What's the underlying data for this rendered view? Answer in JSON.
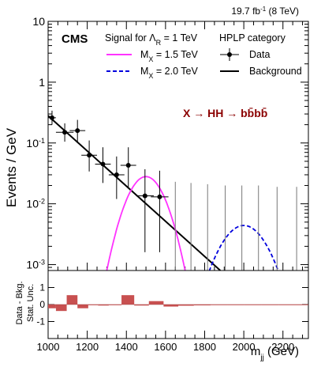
{
  "chart_data": {
    "type": "scatter",
    "lumi_label": "19.7 fb",
    "lumi_sup": "-1",
    "lumi_suffix": " (8 TeV)",
    "experiment_label": "CMS",
    "category_label": "HPLP category",
    "signal_header": "Signal for Λ",
    "signal_header_sub": "R",
    "signal_header_suffix": " = 1 TeV",
    "process_label": "X → HH → bb̄bb̄",
    "xlabel": "m",
    "xlabel_sub": "jj",
    "xlabel_suffix": " (GeV)",
    "ylabel": "Events / GeV",
    "ratio_ylabel_top": "Data - Bkg.",
    "ratio_ylabel_bottom": "Stat. Unc.",
    "xlim": [
      1000,
      2330
    ],
    "ylim_log": [
      0.0008,
      10
    ],
    "ratio_ylim": [
      -2,
      2
    ],
    "xticks": [
      1000,
      1200,
      1400,
      1600,
      1800,
      2000,
      2200
    ],
    "yticks_top": [
      {
        "value": 10,
        "label": "10"
      },
      {
        "value": 1,
        "label": "1"
      },
      {
        "value": 0.1,
        "label": "10",
        "sup": "-1"
      },
      {
        "value": 0.01,
        "label": "10",
        "sup": "-2"
      },
      {
        "value": 0.001,
        "label": "10",
        "sup": "-3"
      }
    ],
    "ratio_yticks": [
      -1,
      0,
      1
    ],
    "legend": [
      {
        "label": "M",
        "sub": "X",
        "suffix": " = 1.5 TeV",
        "color": "#ff33ff",
        "style": "solid"
      },
      {
        "label": "M",
        "sub": "X",
        "suffix": " = 2.0 TeV",
        "color": "#0000dd",
        "style": "dashed"
      },
      {
        "label": "Data",
        "style": "marker"
      },
      {
        "label": "Background",
        "style": "line",
        "color": "#000000"
      }
    ],
    "data_points": [
      {
        "x": 1020,
        "y": 0.26,
        "xerr": 20,
        "ylo": 0.2,
        "yhi": 0.34
      },
      {
        "x": 1085,
        "y": 0.15,
        "xerr": 45,
        "ylo": 0.105,
        "yhi": 0.21
      },
      {
        "x": 1150,
        "y": 0.16,
        "xerr": 40,
        "ylo": 0.1,
        "yhi": 0.24
      },
      {
        "x": 1210,
        "y": 0.063,
        "xerr": 40,
        "ylo": 0.034,
        "yhi": 0.11
      },
      {
        "x": 1280,
        "y": 0.045,
        "xerr": 40,
        "ylo": 0.022,
        "yhi": 0.085
      },
      {
        "x": 1350,
        "y": 0.03,
        "xerr": 40,
        "ylo": 0.012,
        "yhi": 0.06
      },
      {
        "x": 1410,
        "y": 0.043,
        "xerr": 40,
        "ylo": 0.018,
        "yhi": 0.085
      },
      {
        "x": 1495,
        "y": 0.0135,
        "xerr": 45,
        "ylo": 0.0016,
        "yhi": 0.037
      },
      {
        "x": 1570,
        "y": 0.013,
        "xerr": 45,
        "ylo": 0.0016,
        "yhi": 0.035
      }
    ],
    "empty_bin_errors": [
      {
        "x": 1650,
        "yhi": 0.023
      },
      {
        "x": 1730,
        "yhi": 0.022
      },
      {
        "x": 1815,
        "yhi": 0.021
      },
      {
        "x": 1905,
        "yhi": 0.02
      },
      {
        "x": 1990,
        "yhi": 0.02
      },
      {
        "x": 2075,
        "yhi": 0.02
      },
      {
        "x": 2170,
        "yhi": 0.019
      },
      {
        "x": 2270,
        "yhi": 0.019
      }
    ],
    "background_fit": {
      "x": [
        1000,
        1880
      ],
      "y": [
        0.28,
        0.0008
      ]
    },
    "signals": [
      {
        "name": "M_X = 1.5 TeV",
        "mean": 1500,
        "sigma": 75,
        "peak": 0.028,
        "color": "#ff33ff",
        "dash": false
      },
      {
        "name": "M_X = 2.0 TeV",
        "mean": 2000,
        "sigma": 95,
        "peak": 0.0044,
        "color": "#0000dd",
        "dash": true
      }
    ],
    "ratio_bins": [
      {
        "x0": 1000,
        "x1": 1040,
        "value": -0.22
      },
      {
        "x0": 1040,
        "x1": 1095,
        "value": -0.38
      },
      {
        "x0": 1095,
        "x1": 1150,
        "value": 0.55
      },
      {
        "x0": 1150,
        "x1": 1205,
        "value": -0.22
      },
      {
        "x0": 1205,
        "x1": 1255,
        "value": -0.04
      },
      {
        "x0": 1255,
        "x1": 1310,
        "value": -0.06
      },
      {
        "x0": 1310,
        "x1": 1375,
        "value": -0.04
      },
      {
        "x0": 1375,
        "x1": 1440,
        "value": 0.55
      },
      {
        "x0": 1440,
        "x1": 1515,
        "value": -0.06
      },
      {
        "x0": 1515,
        "x1": 1590,
        "value": 0.2
      },
      {
        "x0": 1590,
        "x1": 1665,
        "value": -0.12
      },
      {
        "x0": 1665,
        "x1": 1745,
        "value": -0.07
      },
      {
        "x0": 1745,
        "x1": 1830,
        "value": -0.05
      },
      {
        "x0": 1830,
        "x1": 1915,
        "value": -0.03
      },
      {
        "x0": 1915,
        "x1": 2000,
        "value": -0.02
      },
      {
        "x0": 2000,
        "x1": 2090,
        "value": -0.02
      },
      {
        "x0": 2090,
        "x1": 2180,
        "value": -0.01
      },
      {
        "x0": 2180,
        "x1": 2330,
        "value": -0.01
      }
    ],
    "ratio_fill_color": "#c85050",
    "grid": false,
    "legend_position": "top"
  }
}
